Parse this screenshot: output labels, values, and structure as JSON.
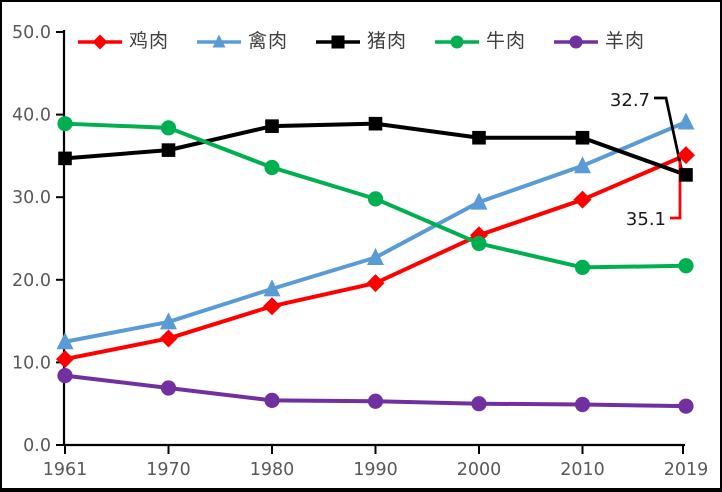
{
  "chart_data": {
    "type": "line",
    "title": "",
    "categories": [
      "1961",
      "1970",
      "1980",
      "1990",
      "2000",
      "2010",
      "2019"
    ],
    "series": [
      {
        "name": "鸡肉",
        "color": "#FF0000",
        "marker": "diamond",
        "values": [
          10.4,
          12.9,
          16.8,
          19.6,
          25.4,
          29.7,
          35.1
        ]
      },
      {
        "name": "禽肉",
        "color": "#5B9BD5",
        "marker": "triangle",
        "values": [
          12.5,
          14.9,
          18.9,
          22.7,
          29.4,
          33.8,
          39.1
        ]
      },
      {
        "name": "猪肉",
        "color": "#000000",
        "marker": "square",
        "values": [
          34.7,
          35.7,
          38.6,
          38.9,
          37.2,
          37.2,
          32.7
        ]
      },
      {
        "name": "牛肉",
        "color": "#00B050",
        "marker": "circle",
        "values": [
          38.9,
          38.4,
          33.6,
          29.8,
          24.4,
          21.5,
          21.7
        ]
      },
      {
        "name": "羊肉",
        "color": "#7030A0",
        "marker": "circle",
        "values": [
          8.4,
          6.9,
          5.4,
          5.3,
          5.0,
          4.9,
          4.7
        ]
      }
    ],
    "xlabel": "",
    "ylabel": "",
    "ylim": [
      0,
      50
    ],
    "ytick_step": 10,
    "ytick_labels": [
      "0.0",
      "10.0",
      "20.0",
      "30.0",
      "40.0",
      "50.0"
    ],
    "grid": false,
    "legend_position": "top-center",
    "annotations": [
      {
        "text": "32.7",
        "series": "猪肉",
        "category": "2019",
        "value": 32.7,
        "leader_color": "#000000"
      },
      {
        "text": "35.1",
        "series": "鸡肉",
        "category": "2019",
        "value": 35.1,
        "leader_color": "#FF0000"
      }
    ],
    "axis_color": "#000000",
    "tick_label_color": "#595959"
  }
}
